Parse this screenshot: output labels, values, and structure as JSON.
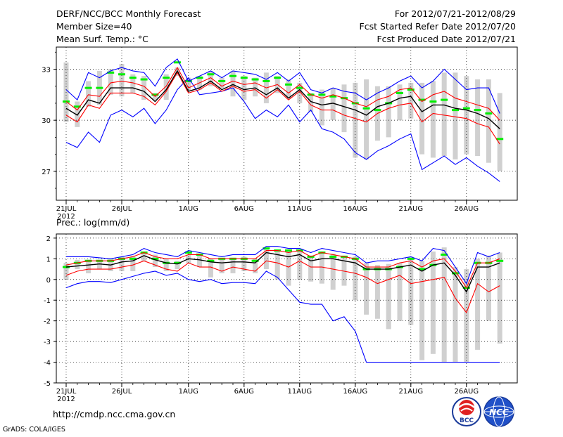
{
  "header": {
    "left_line1": "DERF/NCC/BCC Monthly Forecast",
    "left_line2": "Member Size=40",
    "left_line3": "Mean Surf. Temp.: °C",
    "right_line1": "For 2012/07/21-2012/08/29",
    "right_line2": "Fcst Started Refer Date 2012/07/20",
    "right_line3": "Fcst Produced Date 2012/07/21"
  },
  "footer": {
    "url": "http://cmdp.ncc.cma.gov.cn",
    "grads": "GrADS: COLA/IGES",
    "logo_bcc": "BCC",
    "logo_ncc": "NCC"
  },
  "colors": {
    "box": "#d0d0d0",
    "median": "#00ee00",
    "mean": "#000000",
    "spread": "#ff0000",
    "envelope": "#0000ff",
    "grid": "#000000"
  },
  "chart_data": [
    {
      "type": "line",
      "title": "Mean Surf. Temp.: °C",
      "days": 40,
      "ylim": [
        25.3,
        34.3
      ],
      "yticks": [
        27,
        30,
        33
      ],
      "xtick_labels": [
        "21JUL",
        "26JUL",
        "1AUG",
        "6AUG",
        "11AUG",
        "16AUG",
        "21AUG",
        "26AUG"
      ],
      "xtick_days": [
        1,
        6,
        12,
        17,
        22,
        27,
        32,
        37
      ],
      "year_label": "2012",
      "series": [
        {
          "name": "max",
          "values": [
            28.7,
            28.4,
            29.3,
            28.7,
            30.3,
            30.6,
            30.2,
            30.7,
            29.8,
            30.6,
            31.8,
            32.5,
            31.5,
            31.6,
            31.7,
            31.9,
            31.1,
            30.1,
            30.6,
            30.2,
            30.9,
            29.9,
            30.6,
            29.5,
            29.3,
            28.9,
            28.1,
            27.7,
            28.2,
            28.5,
            28.9,
            29.2,
            27.1,
            27.5,
            27.9,
            27.4,
            27.8,
            27.3,
            26.9,
            26.4
          ]
        },
        {
          "name": "p25",
          "values": [
            30.3,
            29.9,
            30.9,
            30.7,
            31.6,
            31.6,
            31.6,
            31.4,
            30.9,
            31.7,
            32.8,
            31.6,
            31.8,
            32.2,
            31.7,
            32.0,
            31.7,
            31.8,
            31.3,
            31.8,
            31.2,
            31.7,
            30.9,
            30.6,
            30.6,
            30.3,
            30.1,
            29.9,
            30.4,
            30.7,
            30.9,
            31.0,
            29.9,
            30.4,
            30.3,
            30.2,
            30.1,
            29.8,
            29.6,
            28.6
          ]
        },
        {
          "name": "mean",
          "values": [
            30.7,
            30.3,
            31.2,
            31.0,
            31.9,
            31.9,
            31.9,
            31.7,
            31.1,
            31.8,
            32.9,
            31.7,
            31.9,
            32.3,
            31.8,
            32.1,
            31.8,
            31.9,
            31.5,
            31.9,
            31.3,
            31.8,
            31.1,
            30.9,
            31.0,
            30.8,
            30.6,
            30.3,
            30.8,
            31.0,
            31.3,
            31.4,
            30.5,
            30.9,
            30.9,
            30.7,
            30.6,
            30.4,
            30.1,
            29.5
          ]
        },
        {
          "name": "p75",
          "values": [
            31.1,
            30.6,
            31.5,
            31.4,
            32.2,
            32.3,
            32.2,
            32.0,
            31.4,
            32.0,
            33.1,
            31.9,
            32.2,
            32.5,
            32.0,
            32.3,
            32.1,
            32.2,
            31.9,
            32.1,
            31.6,
            32.1,
            31.5,
            31.3,
            31.5,
            31.3,
            31.0,
            30.8,
            31.2,
            31.4,
            31.8,
            31.9,
            31.1,
            31.5,
            31.7,
            31.3,
            31.1,
            30.9,
            30.7,
            30.0
          ]
        },
        {
          "name": "min",
          "values": [
            31.8,
            31.2,
            32.8,
            32.5,
            32.9,
            33.1,
            32.9,
            32.8,
            32.0,
            33.1,
            33.6,
            32.3,
            32.6,
            32.9,
            32.5,
            32.9,
            32.8,
            32.7,
            32.4,
            32.8,
            32.3,
            32.8,
            31.8,
            31.6,
            31.9,
            31.7,
            31.6,
            31.2,
            31.6,
            31.9,
            32.3,
            32.6,
            31.9,
            32.3,
            33.0,
            32.4,
            31.8,
            31.9,
            31.9,
            30.4
          ]
        },
        {
          "name": "median",
          "values": [
            31.1,
            30.8,
            31.9,
            31.9,
            32.8,
            32.7,
            32.5,
            32.4,
            31.5,
            32.5,
            33.4,
            32.3,
            32.5,
            32.7,
            32.3,
            32.6,
            32.5,
            32.4,
            32.3,
            32.5,
            32.1,
            31.9,
            31.5,
            31.5,
            31.4,
            31.3,
            31.0,
            30.7,
            30.6,
            31.0,
            31.6,
            31.8,
            31.2,
            31.1,
            31.2,
            30.6,
            30.7,
            30.6,
            30.4,
            28.9
          ]
        },
        {
          "name": "box_low",
          "values": [
            29.9,
            29.6,
            30.8,
            30.9,
            31.5,
            31.4,
            31.6,
            31.2,
            31.2,
            31.2,
            32.6,
            31.7,
            31.8,
            32.0,
            31.9,
            31.4,
            31.2,
            31.4,
            31.0,
            31.6,
            31.3,
            31.0,
            30.5,
            29.7,
            30.0,
            29.3,
            27.8,
            27.7,
            28.8,
            29.0,
            30.0,
            30.1,
            28.0,
            27.8,
            27.9,
            27.7,
            28.0,
            27.9,
            27.5,
            27.0
          ]
        },
        {
          "name": "box_high",
          "values": [
            33.4,
            31.1,
            32.3,
            32.9,
            33.0,
            33.3,
            32.7,
            32.6,
            31.6,
            32.7,
            33.1,
            32.5,
            32.6,
            32.9,
            32.5,
            32.9,
            32.6,
            32.5,
            32.8,
            32.6,
            32.4,
            32.2,
            31.6,
            31.8,
            31.9,
            32.1,
            32.2,
            32.4,
            32.0,
            32.0,
            32.1,
            32.2,
            32.2,
            32.3,
            32.8,
            32.8,
            32.6,
            32.4,
            32.4,
            31.6
          ]
        }
      ]
    },
    {
      "type": "line",
      "title": "Prec.: log(mm/d)",
      "days": 40,
      "ylim": [
        -5,
        2.2
      ],
      "yticks": [
        -5,
        -4,
        -3,
        -2,
        -1,
        0,
        1,
        2
      ],
      "xtick_labels": [
        "21JUL",
        "26JUL",
        "1AUG",
        "6AUG",
        "11AUG",
        "16AUG",
        "21AUG",
        "26AUG"
      ],
      "xtick_days": [
        1,
        6,
        12,
        17,
        22,
        27,
        32,
        37
      ],
      "year_label": "2012",
      "series": [
        {
          "name": "min",
          "values": [
            -0.4,
            -0.2,
            -0.1,
            -0.1,
            -0.15,
            0.0,
            0.15,
            0.3,
            0.4,
            0.2,
            0.3,
            0.0,
            -0.1,
            0.0,
            -0.2,
            -0.15,
            -0.15,
            -0.2,
            0.4,
            0.1,
            -0.5,
            -1.1,
            -1.2,
            -1.2,
            -2.0,
            -1.8,
            -2.5,
            -4.0,
            -4.0,
            -4.0,
            -4.0,
            -4.0,
            -4.0,
            -4.0,
            -4.0,
            -4.0,
            -4.0,
            -4.0,
            -4.0,
            -4.0
          ]
        },
        {
          "name": "p25",
          "values": [
            0.2,
            0.4,
            0.5,
            0.5,
            0.5,
            0.6,
            0.7,
            0.9,
            0.7,
            0.5,
            0.4,
            0.8,
            0.6,
            0.6,
            0.4,
            0.6,
            0.5,
            0.4,
            0.9,
            0.8,
            0.6,
            0.9,
            0.6,
            0.6,
            0.5,
            0.4,
            0.3,
            0.1,
            -0.2,
            0.0,
            0.2,
            -0.2,
            -0.1,
            0.0,
            0.1,
            -0.9,
            -1.6,
            -0.2,
            -0.6,
            -0.3
          ]
        },
        {
          "name": "mean",
          "values": [
            0.6,
            0.65,
            0.7,
            0.75,
            0.7,
            0.85,
            0.9,
            1.15,
            0.95,
            0.8,
            0.75,
            1.0,
            0.95,
            0.85,
            0.8,
            0.85,
            0.85,
            0.8,
            1.3,
            1.2,
            1.1,
            1.2,
            0.9,
            1.0,
            1.0,
            0.9,
            0.8,
            0.5,
            0.5,
            0.5,
            0.6,
            0.7,
            0.4,
            0.7,
            0.8,
            0.2,
            -0.6,
            0.6,
            0.6,
            0.8
          ]
        },
        {
          "name": "p75",
          "values": [
            0.7,
            0.8,
            0.9,
            0.9,
            0.9,
            1.0,
            1.1,
            1.3,
            1.1,
            1.0,
            1.0,
            1.2,
            1.2,
            1.0,
            1.0,
            1.0,
            1.0,
            1.0,
            1.4,
            1.4,
            1.3,
            1.4,
            1.1,
            1.3,
            1.2,
            1.1,
            1.0,
            0.6,
            0.6,
            0.6,
            0.8,
            0.9,
            0.6,
            0.9,
            1.0,
            0.4,
            -0.4,
            0.8,
            0.8,
            1.0
          ]
        },
        {
          "name": "max",
          "values": [
            1.1,
            1.1,
            1.1,
            1.05,
            1.0,
            1.1,
            1.2,
            1.5,
            1.3,
            1.2,
            1.1,
            1.4,
            1.3,
            1.2,
            1.1,
            1.2,
            1.2,
            1.2,
            1.6,
            1.6,
            1.5,
            1.5,
            1.3,
            1.5,
            1.4,
            1.3,
            1.2,
            0.8,
            0.9,
            0.9,
            1.0,
            1.1,
            0.9,
            1.5,
            1.4,
            0.6,
            -0.2,
            1.3,
            1.1,
            1.3
          ]
        },
        {
          "name": "median",
          "values": [
            0.6,
            0.8,
            0.9,
            0.9,
            0.9,
            1.0,
            1.0,
            1.3,
            1.0,
            0.8,
            0.8,
            1.3,
            1.2,
            0.9,
            1.0,
            1.0,
            1.0,
            0.9,
            1.5,
            1.4,
            1.4,
            1.4,
            1.1,
            1.3,
            1.1,
            1.1,
            1.0,
            0.5,
            0.5,
            0.5,
            0.6,
            1.0,
            0.5,
            0.7,
            1.2,
            0.3,
            -0.4,
            0.8,
            0.8,
            0.9
          ]
        },
        {
          "name": "box_low",
          "values": [
            0.0,
            0.5,
            0.3,
            0.5,
            0.4,
            0.4,
            0.4,
            0.9,
            0.6,
            0.4,
            0.5,
            0.8,
            0.6,
            0.1,
            0.3,
            0.3,
            0.4,
            0.3,
            0.5,
            0.0,
            -0.3,
            0.0,
            -0.1,
            -0.2,
            -0.5,
            -0.3,
            -1.0,
            -1.7,
            -1.9,
            -2.4,
            -2.0,
            -2.2,
            -3.9,
            -3.6,
            -4.0,
            -4.0,
            -4.0,
            -3.4,
            -2.0,
            -3.1
          ]
        },
        {
          "name": "box_high",
          "values": [
            0.8,
            0.95,
            0.95,
            0.95,
            1.0,
            1.1,
            1.15,
            1.25,
            1.2,
            1.0,
            0.9,
            1.2,
            1.2,
            1.0,
            0.95,
            1.05,
            1.1,
            1.0,
            1.5,
            1.4,
            1.4,
            1.4,
            1.1,
            1.35,
            1.25,
            1.15,
            1.1,
            0.8,
            0.7,
            0.75,
            0.8,
            1.1,
            0.9,
            1.35,
            1.55,
            0.6,
            0.5,
            1.0,
            1.15,
            1.3
          ]
        }
      ]
    }
  ]
}
